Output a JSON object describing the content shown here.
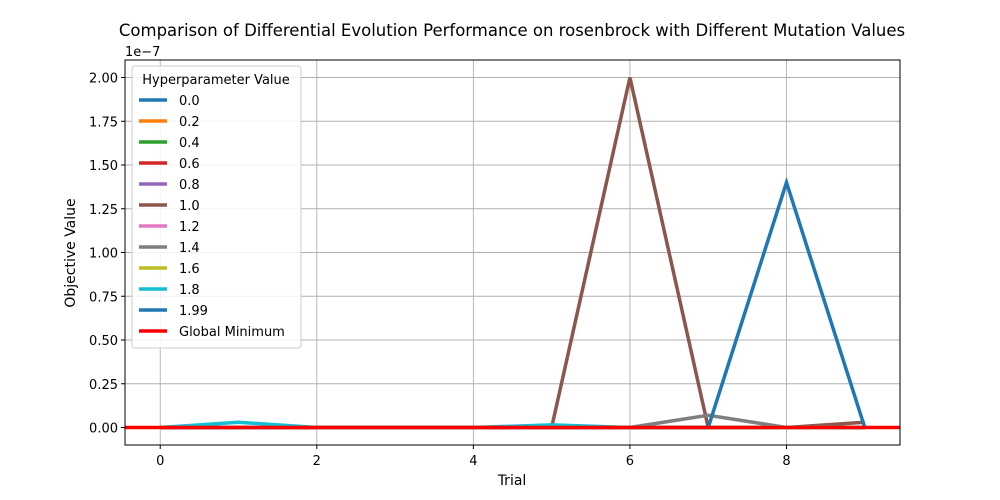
{
  "chart_data": {
    "type": "line",
    "title": "Comparison of Differential Evolution Performance on rosenbrock with Different Mutation Values",
    "xlabel": "Trial",
    "ylabel": "Objective Value",
    "y_offset_label": "1e−7",
    "y_scale_factor": 1e-07,
    "xlim": [
      -0.45,
      9.45
    ],
    "ylim": [
      -0.1,
      2.1
    ],
    "x_ticks": [
      0,
      2,
      4,
      6,
      8
    ],
    "y_ticks": [
      0.0,
      0.25,
      0.5,
      0.75,
      1.0,
      1.25,
      1.5,
      1.75,
      2.0
    ],
    "y_tick_labels": [
      "0.00",
      "0.25",
      "0.50",
      "0.75",
      "1.00",
      "1.25",
      "1.50",
      "1.75",
      "2.00"
    ],
    "grid": true,
    "legend": {
      "title": "Hyperparameter Value",
      "placement": "top-left"
    },
    "x": [
      0,
      1,
      2,
      3,
      4,
      5,
      6,
      7,
      8,
      9
    ],
    "series": [
      {
        "name": "0.0",
        "color": "#1f77b4",
        "values": [
          0,
          0,
          0,
          0,
          0,
          0,
          0,
          0,
          0,
          0
        ]
      },
      {
        "name": "0.2",
        "color": "#ff7f0e",
        "values": [
          0,
          0,
          0,
          0,
          0,
          0,
          0,
          0,
          0,
          0
        ]
      },
      {
        "name": "0.4",
        "color": "#2ca02c",
        "values": [
          0,
          0,
          0,
          0,
          0,
          0,
          0,
          0,
          0,
          0
        ]
      },
      {
        "name": "0.6",
        "color": "#d62728",
        "values": [
          0,
          0,
          0,
          0,
          0,
          0,
          0,
          0,
          0,
          0
        ]
      },
      {
        "name": "0.8",
        "color": "#9467bd",
        "values": [
          0,
          0,
          0,
          0,
          0,
          0,
          0,
          0,
          0,
          0
        ]
      },
      {
        "name": "1.0",
        "color": "#8c564b",
        "values": [
          0,
          0,
          0,
          0,
          0,
          0,
          2.0,
          0,
          0,
          0.03
        ]
      },
      {
        "name": "1.2",
        "color": "#e377c2",
        "values": [
          0,
          0,
          0,
          0,
          0,
          0,
          0,
          0,
          0,
          0
        ]
      },
      {
        "name": "1.4",
        "color": "#7f7f7f",
        "values": [
          0,
          0,
          0,
          0,
          0,
          0,
          0,
          0.07,
          0,
          0
        ]
      },
      {
        "name": "1.6",
        "color": "#bcbd22",
        "values": [
          0,
          0,
          0,
          0,
          0,
          0,
          0,
          0,
          0,
          0
        ]
      },
      {
        "name": "1.8",
        "color": "#17becf",
        "values": [
          0,
          0.03,
          0,
          0,
          0,
          0.015,
          0,
          0,
          0,
          0
        ]
      },
      {
        "name": "1.99",
        "color": "#1f77b4",
        "values": [
          0,
          0,
          0,
          0,
          0,
          0,
          0,
          0,
          1.4,
          0
        ]
      }
    ],
    "reference_line": {
      "name": "Global Minimum",
      "color": "#ff0000",
      "value": 0
    }
  }
}
